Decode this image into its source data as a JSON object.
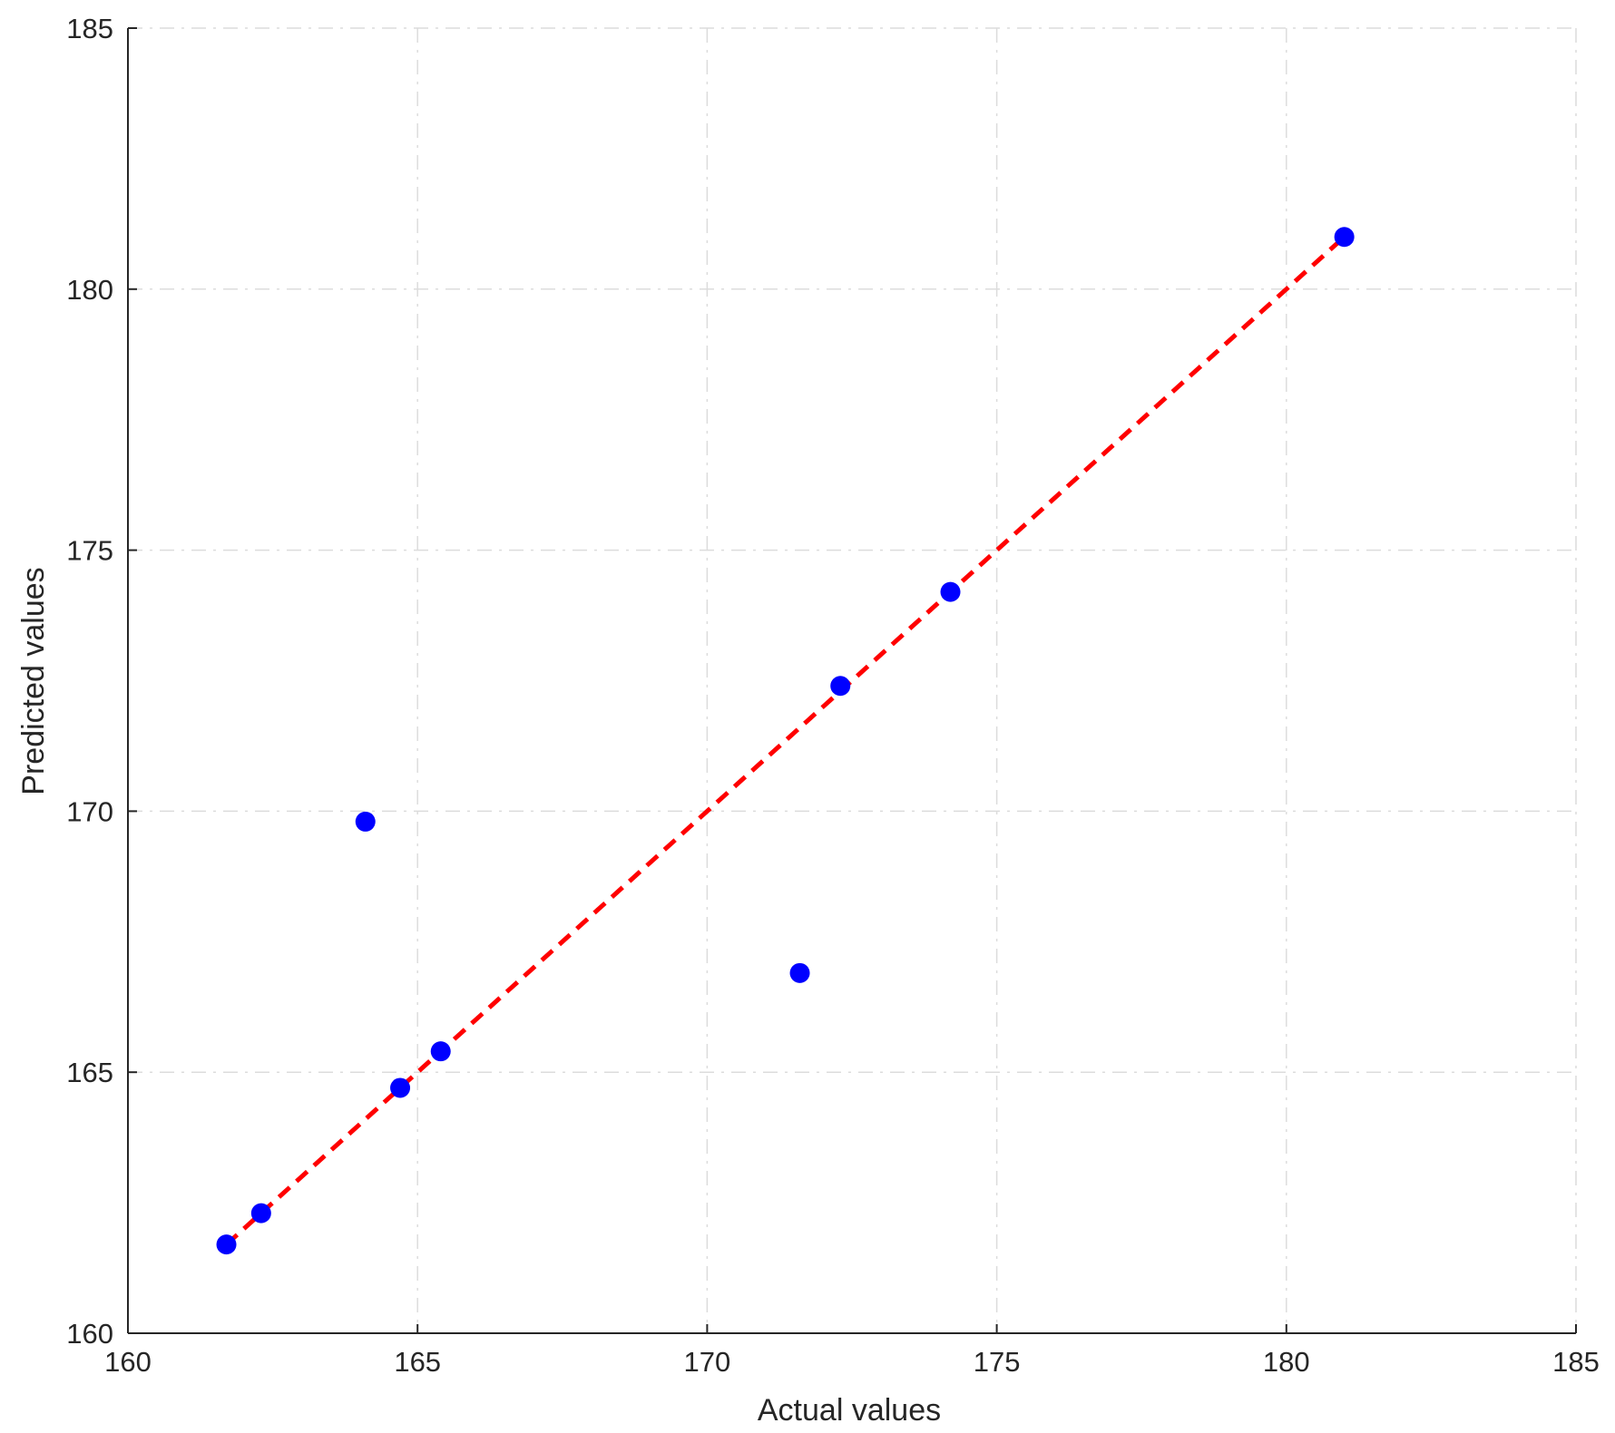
{
  "chart_data": {
    "type": "scatter",
    "title": "",
    "xlabel": "Actual values",
    "ylabel": "Predicted values",
    "xlim": [
      160,
      185
    ],
    "ylim": [
      160,
      185
    ],
    "xticks": [
      "160",
      "165",
      "170",
      "175",
      "180",
      "185"
    ],
    "yticks": [
      "160",
      "165",
      "170",
      "175",
      "180",
      "185"
    ],
    "grid": true,
    "legend": "none",
    "series": [
      {
        "type": "scatter",
        "color": "#0000ff",
        "points": [
          {
            "x": 161.7,
            "y": 161.7
          },
          {
            "x": 162.3,
            "y": 162.3
          },
          {
            "x": 164.1,
            "y": 169.8
          },
          {
            "x": 164.7,
            "y": 164.7
          },
          {
            "x": 165.4,
            "y": 165.4
          },
          {
            "x": 171.6,
            "y": 166.9
          },
          {
            "x": 172.3,
            "y": 172.4
          },
          {
            "x": 174.2,
            "y": 174.2
          },
          {
            "x": 181.0,
            "y": 181.0
          }
        ]
      },
      {
        "type": "line",
        "style": "dashed",
        "color": "#ff0000",
        "x": [
          161.7,
          181.0
        ],
        "y": [
          161.7,
          181.0
        ]
      }
    ]
  }
}
